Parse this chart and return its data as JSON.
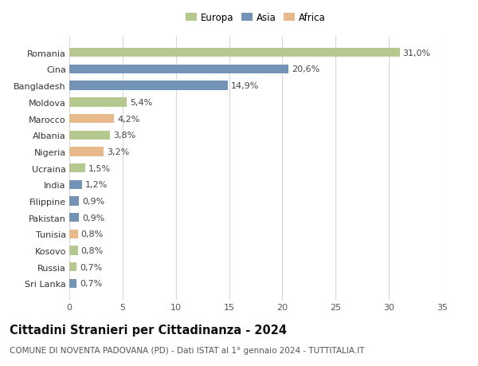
{
  "categories": [
    "Sri Lanka",
    "Russia",
    "Kosovo",
    "Tunisia",
    "Pakistan",
    "Filippine",
    "India",
    "Ucraina",
    "Nigeria",
    "Albania",
    "Marocco",
    "Moldova",
    "Bangladesh",
    "Cina",
    "Romania"
  ],
  "values": [
    0.7,
    0.7,
    0.8,
    0.8,
    0.9,
    0.9,
    1.2,
    1.5,
    3.2,
    3.8,
    4.2,
    5.4,
    14.9,
    20.6,
    31.0
  ],
  "labels": [
    "0,7%",
    "0,7%",
    "0,8%",
    "0,8%",
    "0,9%",
    "0,9%",
    "1,2%",
    "1,5%",
    "3,2%",
    "3,8%",
    "4,2%",
    "5,4%",
    "14,9%",
    "20,6%",
    "31,0%"
  ],
  "continent": [
    "Asia",
    "Europa",
    "Europa",
    "Africa",
    "Asia",
    "Asia",
    "Asia",
    "Europa",
    "Africa",
    "Europa",
    "Africa",
    "Europa",
    "Asia",
    "Asia",
    "Europa"
  ],
  "colors": {
    "Europa": "#b5c98e",
    "Asia": "#7393b7",
    "Africa": "#e8b98a"
  },
  "legend_labels": [
    "Europa",
    "Asia",
    "Africa"
  ],
  "legend_colors": [
    "#b5c98e",
    "#7393b7",
    "#e8b98a"
  ],
  "title": "Cittadini Stranieri per Cittadinanza - 2024",
  "subtitle": "COMUNE DI NOVENTA PADOVANA (PD) - Dati ISTAT al 1° gennaio 2024 - TUTTITALIA.IT",
  "xlim": [
    0,
    35
  ],
  "xticks": [
    0,
    5,
    10,
    15,
    20,
    25,
    30,
    35
  ],
  "background_color": "#ffffff",
  "grid_color": "#d8d8d8",
  "bar_height": 0.55,
  "label_fontsize": 8.0,
  "tick_fontsize": 8.0,
  "title_fontsize": 10.5,
  "subtitle_fontsize": 7.5,
  "legend_fontsize": 8.5
}
